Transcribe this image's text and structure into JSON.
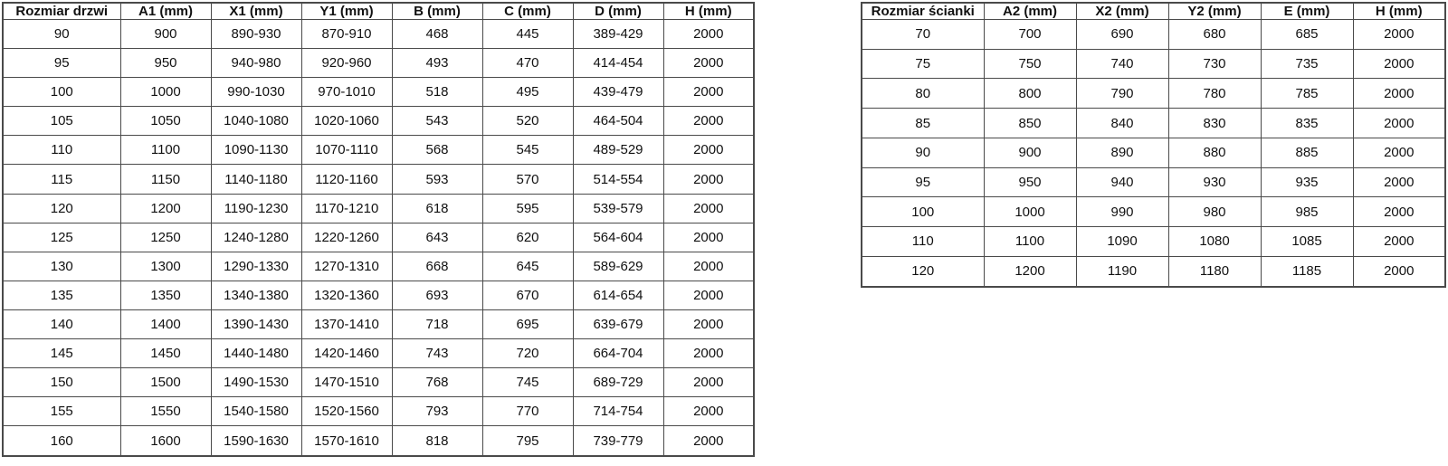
{
  "colors": {
    "border": "#4a4a4a",
    "text": "#111111",
    "background": "#ffffff"
  },
  "door_table": {
    "headers": [
      "Rozmiar drzwi",
      "A1 (mm)",
      "X1 (mm)",
      "Y1 (mm)",
      "B (mm)",
      "C (mm)",
      "D (mm)",
      "H (mm)"
    ],
    "rows": [
      [
        "90",
        "900",
        "890-930",
        "870-910",
        "468",
        "445",
        "389-429",
        "2000"
      ],
      [
        "95",
        "950",
        "940-980",
        "920-960",
        "493",
        "470",
        "414-454",
        "2000"
      ],
      [
        "100",
        "1000",
        "990-1030",
        "970-1010",
        "518",
        "495",
        "439-479",
        "2000"
      ],
      [
        "105",
        "1050",
        "1040-1080",
        "1020-1060",
        "543",
        "520",
        "464-504",
        "2000"
      ],
      [
        "110",
        "1100",
        "1090-1130",
        "1070-1110",
        "568",
        "545",
        "489-529",
        "2000"
      ],
      [
        "115",
        "1150",
        "1140-1180",
        "1120-1160",
        "593",
        "570",
        "514-554",
        "2000"
      ],
      [
        "120",
        "1200",
        "1190-1230",
        "1170-1210",
        "618",
        "595",
        "539-579",
        "2000"
      ],
      [
        "125",
        "1250",
        "1240-1280",
        "1220-1260",
        "643",
        "620",
        "564-604",
        "2000"
      ],
      [
        "130",
        "1300",
        "1290-1330",
        "1270-1310",
        "668",
        "645",
        "589-629",
        "2000"
      ],
      [
        "135",
        "1350",
        "1340-1380",
        "1320-1360",
        "693",
        "670",
        "614-654",
        "2000"
      ],
      [
        "140",
        "1400",
        "1390-1430",
        "1370-1410",
        "718",
        "695",
        "639-679",
        "2000"
      ],
      [
        "145",
        "1450",
        "1440-1480",
        "1420-1460",
        "743",
        "720",
        "664-704",
        "2000"
      ],
      [
        "150",
        "1500",
        "1490-1530",
        "1470-1510",
        "768",
        "745",
        "689-729",
        "2000"
      ],
      [
        "155",
        "1550",
        "1540-1580",
        "1520-1560",
        "793",
        "770",
        "714-754",
        "2000"
      ],
      [
        "160",
        "1600",
        "1590-1630",
        "1570-1610",
        "818",
        "795",
        "739-779",
        "2000"
      ]
    ]
  },
  "wall_table": {
    "headers": [
      "Rozmiar ścianki",
      "A2 (mm)",
      "X2 (mm)",
      "Y2 (mm)",
      "E (mm)",
      "H (mm)"
    ],
    "rows": [
      [
        "70",
        "700",
        "690",
        "680",
        "685",
        "2000"
      ],
      [
        "75",
        "750",
        "740",
        "730",
        "735",
        "2000"
      ],
      [
        "80",
        "800",
        "790",
        "780",
        "785",
        "2000"
      ],
      [
        "85",
        "850",
        "840",
        "830",
        "835",
        "2000"
      ],
      [
        "90",
        "900",
        "890",
        "880",
        "885",
        "2000"
      ],
      [
        "95",
        "950",
        "940",
        "930",
        "935",
        "2000"
      ],
      [
        "100",
        "1000",
        "990",
        "980",
        "985",
        "2000"
      ],
      [
        "110",
        "1100",
        "1090",
        "1080",
        "1085",
        "2000"
      ],
      [
        "120",
        "1200",
        "1190",
        "1180",
        "1185",
        "2000"
      ]
    ]
  }
}
